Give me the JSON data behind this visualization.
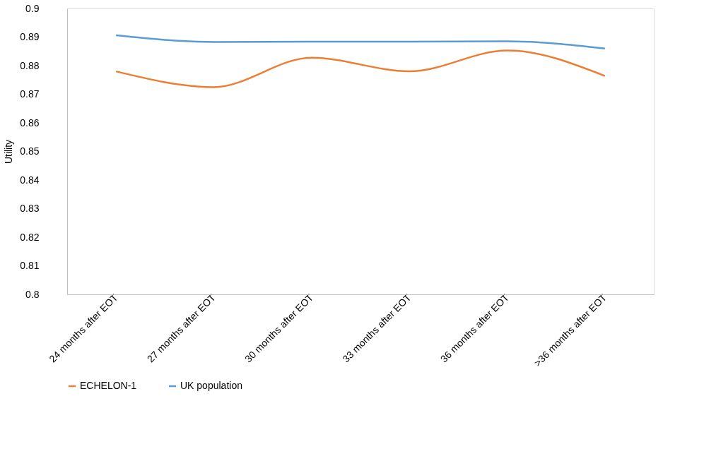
{
  "chart_data": {
    "type": "line",
    "ylabel": "Utility",
    "categories": [
      "24 months after EOT",
      "27 months after EOT",
      "30 months after EOT",
      "33 months after EOT",
      "36 months after EOT",
      ">36 months after EOT"
    ],
    "series": [
      {
        "name": "ECHELON-1",
        "color": "#ed7d31",
        "values": [
          0.878,
          0.8725,
          0.8828,
          0.878,
          0.8853,
          0.8764
        ]
      },
      {
        "name": "UK population",
        "color": "#5b9bd5",
        "values": [
          0.8906,
          0.8883,
          0.8884,
          0.8884,
          0.8885,
          0.886
        ]
      }
    ],
    "ylim": [
      0.8,
      0.9
    ],
    "yticks": [
      0.8,
      0.81,
      0.82,
      0.83,
      0.84,
      0.85,
      0.86,
      0.87,
      0.88,
      0.89,
      0.9
    ],
    "grid": false,
    "legend": "bottom",
    "marker": "none",
    "line_style": "solid"
  }
}
